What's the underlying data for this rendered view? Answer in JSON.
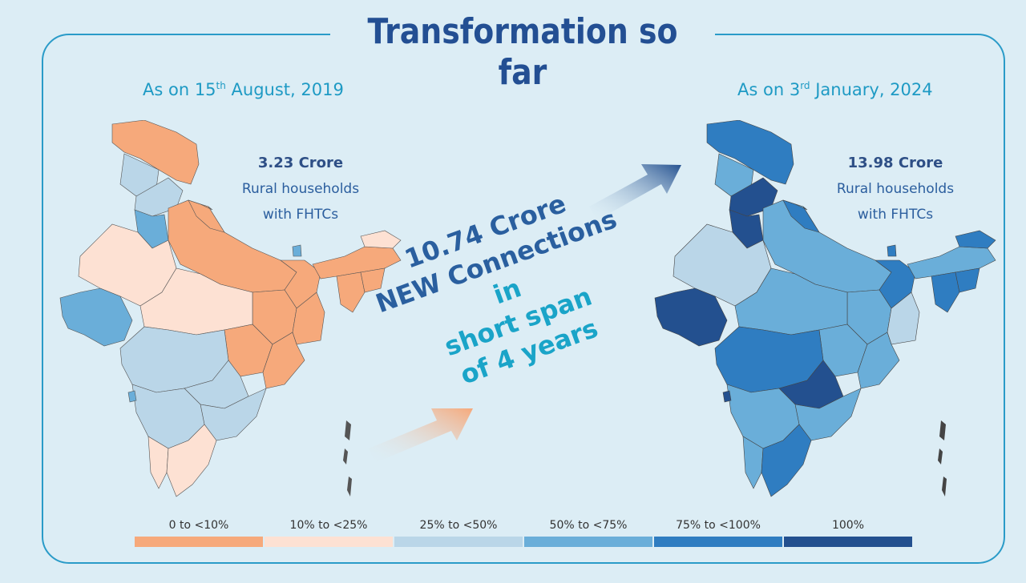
{
  "title": "Transformation so far",
  "left_panel": {
    "date_prefix": "As on 15",
    "date_sup": "th",
    "date_suffix": " August, 2019",
    "value": "3.23 Crore",
    "line2": "Rural households",
    "line3": "with FHTCs"
  },
  "right_panel": {
    "date_prefix": "As on 3",
    "date_sup": "rd",
    "date_suffix": " January, 2024",
    "value": "13.98 Crore",
    "line2": "Rural households",
    "line3": "with FHTCs"
  },
  "center": {
    "line1": "10.74 Crore",
    "line2": "NEW Connections",
    "line3": "in",
    "line4": "short span",
    "line5": "of 4 years"
  },
  "legend": [
    {
      "label": "0 to <10%",
      "color": "#f6a97b"
    },
    {
      "label": "10% to <25%",
      "color": "#fde1d3"
    },
    {
      "label": "25% to <50%",
      "color": "#bad6e8"
    },
    {
      "label": "50% to <75%",
      "color": "#6aaed9"
    },
    {
      "label": "75% to <100%",
      "color": "#2f7dc1"
    },
    {
      "label": "100%",
      "color": "#23508f"
    }
  ]
}
